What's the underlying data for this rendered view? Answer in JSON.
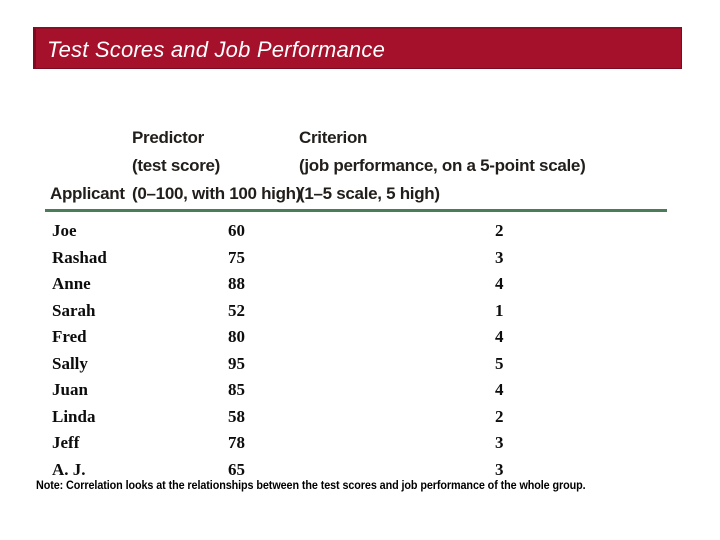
{
  "title_bar": {
    "title": "Test Scores and Job Performance",
    "bg_color": "#A5102B",
    "border_color": "#7D0A20",
    "text_color": "#FFFFFF"
  },
  "table": {
    "rule_color": "#4A7C59",
    "columns": {
      "applicant": {
        "label": "Applicant"
      },
      "predictor": {
        "line1": "Predictor",
        "line2": "(test score)",
        "line3": "(0–100, with 100 high)"
      },
      "criterion": {
        "line1": "Criterion",
        "line2": "(job performance, on a 5-point scale)",
        "line3": "(1–5 scale, 5 high)"
      }
    },
    "rows": [
      {
        "applicant": "Joe",
        "score": "60",
        "performance": "2"
      },
      {
        "applicant": "Rashad",
        "score": "75",
        "performance": "3"
      },
      {
        "applicant": "Anne",
        "score": "88",
        "performance": "4"
      },
      {
        "applicant": "Sarah",
        "score": "52",
        "performance": "1"
      },
      {
        "applicant": "Fred",
        "score": "80",
        "performance": "4"
      },
      {
        "applicant": "Sally",
        "score": "95",
        "performance": "5"
      },
      {
        "applicant": "Juan",
        "score": "85",
        "performance": "4"
      },
      {
        "applicant": "Linda",
        "score": "58",
        "performance": "2"
      },
      {
        "applicant": "Jeff",
        "score": "78",
        "performance": "3"
      },
      {
        "applicant": "A. J.",
        "score": "65",
        "performance": "3"
      }
    ]
  },
  "note": "Note: Correlation looks at the relationships between the test scores and job performance of the whole group."
}
